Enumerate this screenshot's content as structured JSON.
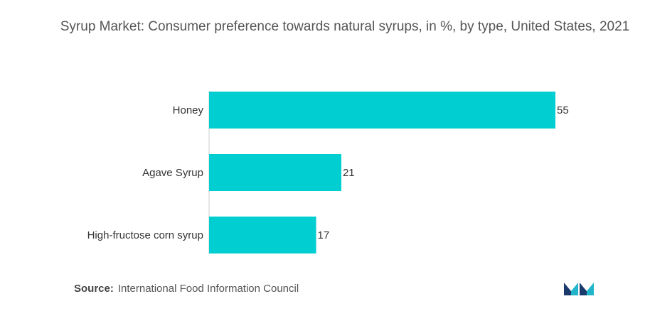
{
  "chart_data": {
    "type": "bar",
    "orientation": "horizontal",
    "title": "Syrup Market: Consumer preference towards natural syrups, in %, by type, United States, 2021",
    "categories": [
      "Honey",
      "Agave Syrup",
      "High-fructose corn syrup"
    ],
    "values": [
      55,
      21,
      17
    ],
    "value_labels": [
      "55",
      "21",
      "17"
    ],
    "xlim": [
      0,
      55
    ],
    "grid": false,
    "legend": "none",
    "bar_color": "#00CED1",
    "axis_color": "#cccccc"
  },
  "source": {
    "label": "Source:",
    "text": "International Food Information Council"
  },
  "logo": {
    "icon": "mordor-logo-icon",
    "colors": [
      "#1a3a6b",
      "#22b5c9"
    ]
  }
}
